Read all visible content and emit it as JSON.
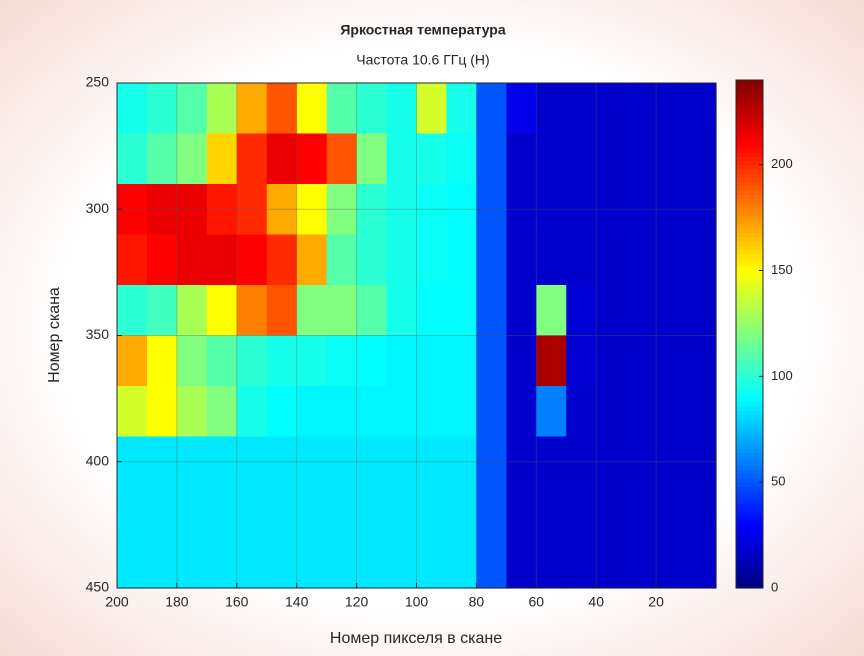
{
  "chart_data": {
    "type": "heatmap",
    "title": "Яркостная температура",
    "subtitle": "Частота 10.6 ГГц (H)",
    "x_label": "Номер пикселя в скане",
    "y_label": "Номер скана",
    "colormap": "jet",
    "grid": true,
    "x": [
      195,
      185,
      175,
      165,
      155,
      145,
      135,
      125,
      115,
      105,
      95,
      85,
      75,
      65,
      55,
      45,
      35,
      25,
      15,
      5
    ],
    "y": [
      260,
      280,
      300,
      320,
      340,
      360,
      380,
      400,
      420,
      440
    ],
    "z": [
      [
        95,
        100,
        110,
        130,
        170,
        190,
        150,
        110,
        100,
        95,
        140,
        95,
        50,
        25,
        18,
        18,
        18,
        18,
        18,
        18
      ],
      [
        100,
        110,
        120,
        160,
        200,
        215,
        210,
        190,
        120,
        95,
        95,
        92,
        50,
        18,
        18,
        18,
        18,
        18,
        18,
        18
      ],
      [
        210,
        215,
        215,
        205,
        200,
        170,
        150,
        120,
        100,
        95,
        92,
        90,
        50,
        18,
        18,
        18,
        18,
        18,
        18,
        18
      ],
      [
        205,
        210,
        215,
        215,
        210,
        200,
        170,
        110,
        100,
        95,
        92,
        90,
        50,
        18,
        18,
        18,
        18,
        18,
        18,
        18
      ],
      [
        100,
        105,
        130,
        150,
        180,
        190,
        120,
        120,
        110,
        95,
        90,
        90,
        50,
        18,
        120,
        20,
        18,
        18,
        18,
        18
      ],
      [
        170,
        150,
        120,
        110,
        100,
        95,
        95,
        92,
        90,
        88,
        88,
        88,
        50,
        18,
        230,
        20,
        18,
        18,
        18,
        18
      ],
      [
        140,
        150,
        130,
        120,
        95,
        90,
        88,
        88,
        88,
        88,
        88,
        88,
        50,
        18,
        60,
        18,
        18,
        18,
        18,
        18
      ],
      [
        85,
        85,
        85,
        85,
        85,
        85,
        85,
        85,
        85,
        85,
        85,
        85,
        50,
        18,
        18,
        18,
        18,
        18,
        18,
        18
      ],
      [
        85,
        85,
        85,
        85,
        85,
        85,
        85,
        85,
        85,
        85,
        85,
        85,
        50,
        18,
        18,
        18,
        18,
        18,
        18,
        18
      ],
      [
        85,
        85,
        85,
        85,
        85,
        85,
        85,
        85,
        85,
        85,
        85,
        85,
        50,
        18,
        18,
        18,
        18,
        18,
        18,
        18
      ]
    ],
    "xlim": [
      200,
      0
    ],
    "ylim": [
      250,
      450
    ],
    "xticks": [
      200,
      180,
      160,
      140,
      120,
      100,
      80,
      60,
      40,
      20
    ],
    "yticks": [
      250,
      300,
      350,
      400,
      450
    ],
    "clim": [
      0,
      240
    ],
    "colorbar_ticks": [
      0,
      50,
      100,
      150,
      200
    ]
  }
}
